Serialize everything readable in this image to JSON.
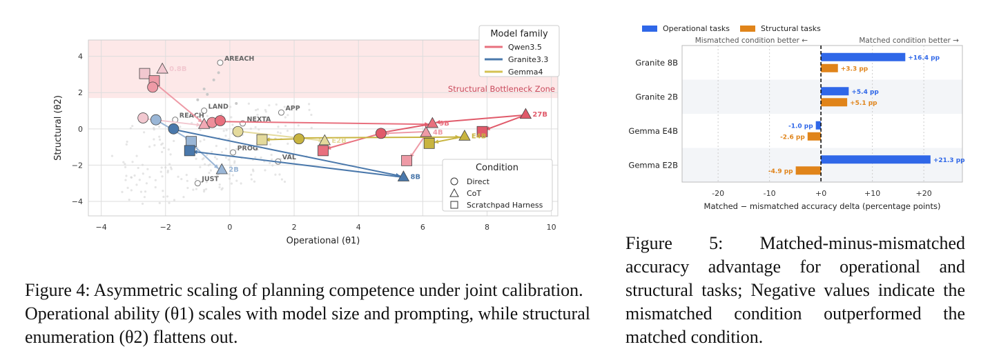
{
  "figure4": {
    "caption": "Figure 4: Asymmetric scaling of planning competence under joint calibration. Operational ability (θ1) scales with model size and prompting, while structural enumeration (θ2) flattens out.",
    "chart_data": {
      "type": "scatter",
      "xlabel": "Operational (θ1)",
      "ylabel": "Structural (θ2)",
      "xlim": [
        -4.4,
        10.2
      ],
      "ylim": [
        -4.8,
        4.9
      ],
      "xticks": [
        -4,
        -2,
        0,
        2,
        4,
        6,
        8,
        10
      ],
      "yticks": [
        -4,
        -2,
        0,
        2,
        4
      ],
      "grid": true,
      "zone": {
        "label": "Structural Bottleneck Zone",
        "y_from": 1.7,
        "y_to": 4.9,
        "color": "#fde8e8"
      },
      "legend_family": {
        "title": "Model family",
        "position": "top-right",
        "entries": [
          {
            "name": "Qwen3.5",
            "color": "#e8707e"
          },
          {
            "name": "Granite3.3",
            "color": "#4a78ab"
          },
          {
            "name": "Gemma4",
            "color": "#d4c252"
          }
        ]
      },
      "legend_condition": {
        "title": "Condition",
        "position": "bottom-right",
        "entries": [
          {
            "name": "Direct",
            "marker": "circle"
          },
          {
            "name": "CoT",
            "marker": "triangle"
          },
          {
            "name": "Scratchpad Harness",
            "marker": "square"
          }
        ]
      },
      "tasks": [
        {
          "name": "AREACH",
          "x": -0.3,
          "y": 3.65
        },
        {
          "name": "APP",
          "x": 1.6,
          "y": 0.9
        },
        {
          "name": "LAND",
          "x": -0.8,
          "y": 1.0
        },
        {
          "name": "REACH",
          "x": -1.7,
          "y": 0.5
        },
        {
          "name": "NEXTA",
          "x": 0.4,
          "y": 0.3
        },
        {
          "name": "PROG",
          "x": 0.1,
          "y": -1.3
        },
        {
          "name": "VAL",
          "x": 1.5,
          "y": -1.8
        },
        {
          "name": "JUST",
          "x": -1.0,
          "y": -3.0
        }
      ],
      "points": [
        {
          "family": "Qwen3.5",
          "condition": "Scratchpad Harness",
          "x": -2.65,
          "y": 3.05,
          "color": "#f2c8d0"
        },
        {
          "family": "Qwen3.5",
          "condition": "CoT",
          "x": -2.1,
          "y": 3.3,
          "color": "#f2c8d0",
          "label": "0.8B"
        },
        {
          "family": "Qwen3.5",
          "condition": "Scratchpad Harness",
          "x": -2.35,
          "y": 2.65,
          "color": "#ee9aa6"
        },
        {
          "family": "Qwen3.5",
          "condition": "Direct",
          "x": -2.4,
          "y": 2.3,
          "color": "#ee9aa6"
        },
        {
          "family": "Qwen3.5",
          "condition": "Direct",
          "x": -2.7,
          "y": 0.6,
          "color": "#f2c8d0"
        },
        {
          "family": "Qwen3.5",
          "condition": "CoT",
          "x": -0.8,
          "y": 0.25,
          "color": "#f2a8b4"
        },
        {
          "family": "Qwen3.5",
          "condition": "Direct",
          "x": -0.55,
          "y": 0.35,
          "color": "#ee8e9a"
        },
        {
          "family": "Qwen3.5",
          "condition": "Direct",
          "x": -0.3,
          "y": 0.45,
          "color": "#e8707e"
        },
        {
          "family": "Qwen3.5",
          "condition": "Direct",
          "x": 4.7,
          "y": -0.25,
          "color": "#e05a6a"
        },
        {
          "family": "Qwen3.5",
          "condition": "CoT",
          "x": 6.3,
          "y": 0.3,
          "color": "#e8707e",
          "label": "9B"
        },
        {
          "family": "Qwen3.5",
          "condition": "CoT",
          "x": 6.1,
          "y": -0.2,
          "color": "#ee9aa6",
          "label": "4B"
        },
        {
          "family": "Qwen3.5",
          "condition": "Scratchpad Harness",
          "x": 2.9,
          "y": -1.2,
          "color": "#e8707e"
        },
        {
          "family": "Qwen3.5",
          "condition": "Scratchpad Harness",
          "x": 5.5,
          "y": -1.75,
          "color": "#ee9aa6"
        },
        {
          "family": "Qwen3.5",
          "condition": "CoT",
          "x": 9.2,
          "y": 0.8,
          "color": "#e05a6a",
          "label": "27B"
        },
        {
          "family": "Qwen3.5",
          "condition": "Scratchpad Harness",
          "x": 7.85,
          "y": -0.15,
          "color": "#e05a6a"
        },
        {
          "family": "Granite3.3",
          "condition": "Direct",
          "x": -2.3,
          "y": 0.5,
          "color": "#9ab6d6"
        },
        {
          "family": "Granite3.3",
          "condition": "Direct",
          "x": -1.75,
          "y": 0.0,
          "color": "#4a78ab"
        },
        {
          "family": "Granite3.3",
          "condition": "Scratchpad Harness",
          "x": -1.2,
          "y": -0.7,
          "color": "#9ab6d6"
        },
        {
          "family": "Granite3.3",
          "condition": "Scratchpad Harness",
          "x": -1.25,
          "y": -1.2,
          "color": "#4a78ab"
        },
        {
          "family": "Granite3.3",
          "condition": "CoT",
          "x": -0.25,
          "y": -2.25,
          "color": "#9ab6d6",
          "label": "2B"
        },
        {
          "family": "Granite3.3",
          "condition": "CoT",
          "x": 5.4,
          "y": -2.65,
          "color": "#4a78ab",
          "label": "8B"
        },
        {
          "family": "Gemma4",
          "condition": "Direct",
          "x": 0.25,
          "y": -0.15,
          "color": "#e4da9c"
        },
        {
          "family": "Gemma4",
          "condition": "Scratchpad Harness",
          "x": 1.0,
          "y": -0.6,
          "color": "#e4da9c"
        },
        {
          "family": "Gemma4",
          "condition": "Direct",
          "x": 2.15,
          "y": -0.55,
          "color": "#c8b440"
        },
        {
          "family": "Gemma4",
          "condition": "CoT",
          "x": 2.95,
          "y": -0.65,
          "color": "#e4da9c",
          "label": "E2B"
        },
        {
          "family": "Gemma4",
          "condition": "Scratchpad Harness",
          "x": 6.2,
          "y": -0.8,
          "color": "#c8b440"
        },
        {
          "family": "Gemma4",
          "condition": "CoT",
          "x": 7.3,
          "y": -0.4,
          "color": "#c8b440",
          "label": "E4B"
        }
      ],
      "arrows": [
        {
          "from": [
            -2.55,
            2.95
          ],
          "to": [
            -2.4,
            2.35
          ],
          "color": "#f2c8d0"
        },
        {
          "from": [
            -2.35,
            2.55
          ],
          "to": [
            -0.85,
            0.35
          ],
          "color": "#ee9aa6"
        },
        {
          "from": [
            -2.6,
            0.55
          ],
          "to": [
            -0.9,
            0.2
          ],
          "color": "#f2c8d0"
        },
        {
          "from": [
            -0.3,
            0.4
          ],
          "to": [
            6.2,
            0.25
          ],
          "color": "#e8707e"
        },
        {
          "from": [
            4.75,
            -0.2
          ],
          "to": [
            6.2,
            0.25
          ],
          "color": "#e05a6a"
        },
        {
          "from": [
            6.2,
            -0.15
          ],
          "to": [
            4.8,
            -0.25
          ],
          "color": "#ee9aa6"
        },
        {
          "from": [
            6.1,
            -0.3
          ],
          "to": [
            5.6,
            -1.6
          ],
          "color": "#ee9aa6"
        },
        {
          "from": [
            4.6,
            -0.3
          ],
          "to": [
            3.0,
            -1.1
          ],
          "color": "#e8707e"
        },
        {
          "from": [
            9.1,
            0.75
          ],
          "to": [
            6.4,
            0.35
          ],
          "color": "#e05a6a"
        },
        {
          "from": [
            9.1,
            0.7
          ],
          "to": [
            7.95,
            -0.05
          ],
          "color": "#e05a6a"
        },
        {
          "from": [
            -2.25,
            0.45
          ],
          "to": [
            -1.25,
            -0.6
          ],
          "color": "#9ab6d6"
        },
        {
          "from": [
            -1.2,
            -0.8
          ],
          "to": [
            -0.35,
            -2.2
          ],
          "color": "#9ab6d6"
        },
        {
          "from": [
            -1.7,
            -0.05
          ],
          "to": [
            5.3,
            -2.6
          ],
          "color": "#4a78ab"
        },
        {
          "from": [
            5.3,
            -2.65
          ],
          "to": [
            -1.15,
            -1.25
          ],
          "color": "#4a78ab"
        },
        {
          "from": [
            0.35,
            -0.15
          ],
          "to": [
            2.9,
            -0.65
          ],
          "color": "#e4da9c"
        },
        {
          "from": [
            2.1,
            -0.55
          ],
          "to": [
            1.1,
            -0.6
          ],
          "color": "#c8b440"
        },
        {
          "from": [
            2.25,
            -0.5
          ],
          "to": [
            7.15,
            -0.45
          ],
          "color": "#c8b440"
        },
        {
          "from": [
            7.2,
            -0.45
          ],
          "to": [
            6.35,
            -0.75
          ],
          "color": "#c8b440"
        }
      ]
    }
  },
  "figure5": {
    "caption": "Figure 5: Matched-minus-mismatched accuracy advantage for operational and structural tasks; Negative values indicate the mismatched condition outperformed the matched condition.",
    "chart_data": {
      "type": "bar",
      "orientation": "horizontal",
      "xlabel": "Matched − mismatched accuracy delta (percentage points)",
      "xlim": [
        -27,
        27.5
      ],
      "xticks": [
        -20,
        -10,
        0,
        10,
        20
      ],
      "xtick_labels": [
        "-20",
        "-10",
        "+0",
        "+10",
        "+20"
      ],
      "annotation_left": "Mismatched condition better ←",
      "annotation_right": "Matched condition better →",
      "legend_position": "top-left",
      "categories": [
        "Granite 8B",
        "Granite 2B",
        "Gemma E4B",
        "Gemma E2B"
      ],
      "series": [
        {
          "name": "Operational tasks",
          "color": "#2f67e8",
          "values": [
            16.4,
            5.4,
            -1.0,
            21.3
          ],
          "labels": [
            "+16.4 pp",
            "+5.4 pp",
            "-1.0 pp",
            "+21.3 pp"
          ]
        },
        {
          "name": "Structural tasks",
          "color": "#e0841a",
          "values": [
            3.3,
            5.1,
            -2.6,
            -4.9
          ],
          "labels": [
            "+3.3 pp",
            "+5.1 pp",
            "-2.6 pp",
            "-4.9 pp"
          ]
        }
      ]
    }
  }
}
